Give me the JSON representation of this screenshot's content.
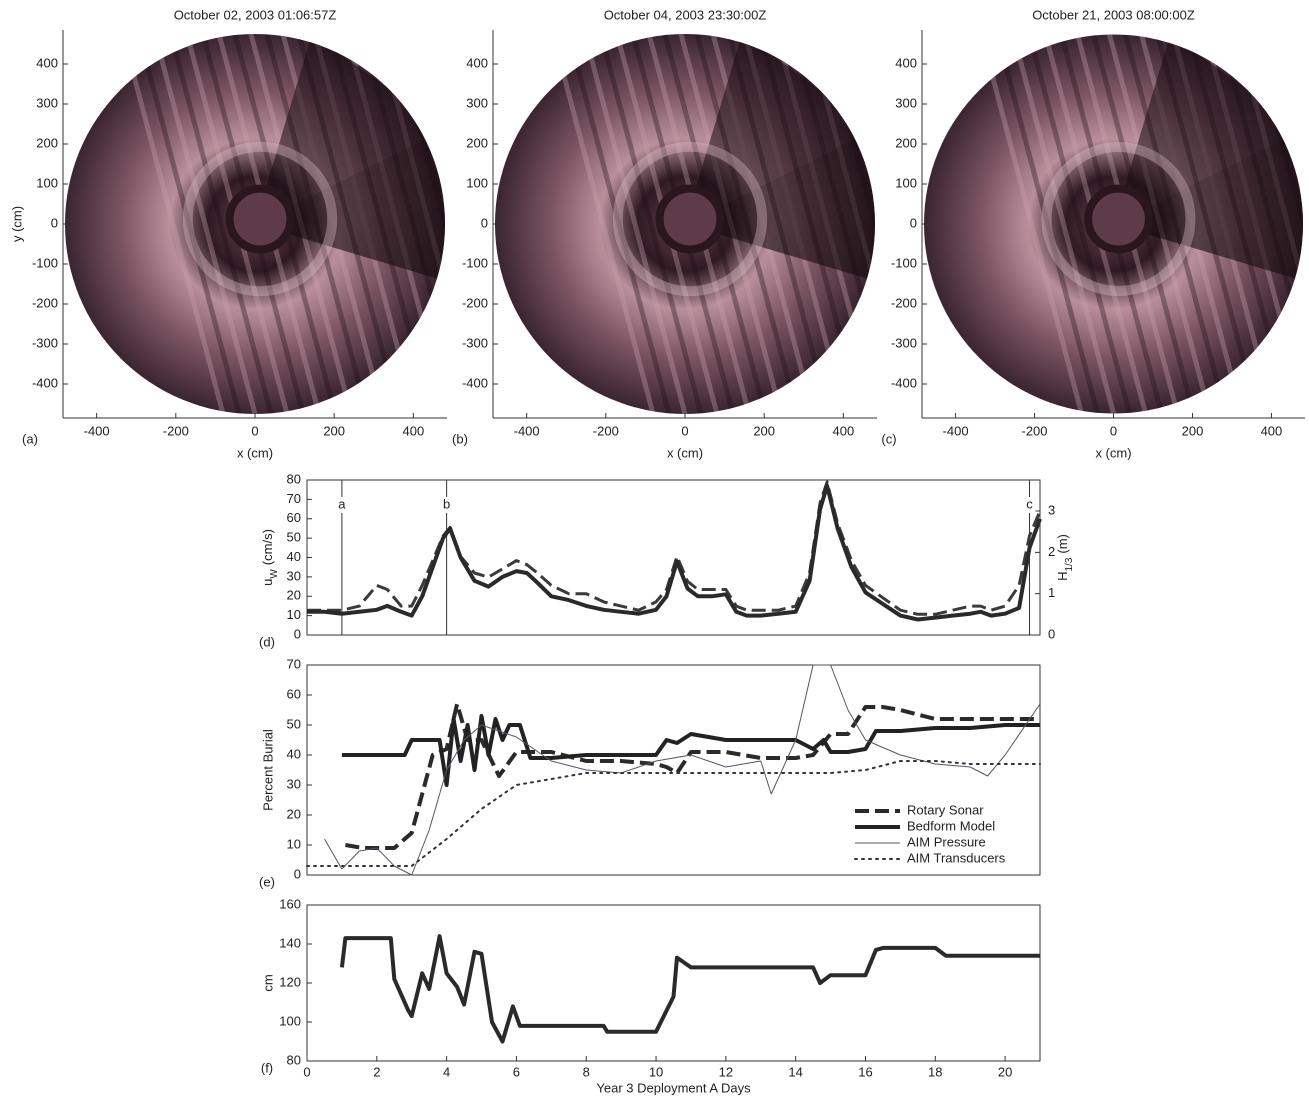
{
  "chart_data": [
    {
      "type": "sonar",
      "title": "October 02, 2003 01:06:57Z",
      "panel_label": "(a)",
      "xlabel": "x (cm)",
      "ylabel": "y (cm)",
      "xlim": [
        -485,
        485
      ],
      "ylim": [
        -485,
        485
      ],
      "xticks": [
        -400,
        -200,
        0,
        200,
        400
      ],
      "yticks": [
        -400,
        -300,
        -200,
        -100,
        0,
        100,
        200,
        300,
        400
      ]
    },
    {
      "type": "sonar",
      "title": "October 04, 2003 23:30:00Z",
      "panel_label": "(b)",
      "xlabel": "x (cm)",
      "xlim": [
        -485,
        485
      ],
      "ylim": [
        -485,
        485
      ],
      "xticks": [
        -400,
        -200,
        0,
        200,
        400
      ],
      "yticks": [
        -400,
        -300,
        -200,
        -100,
        0,
        100,
        200,
        300,
        400
      ]
    },
    {
      "type": "sonar",
      "title": "October 21, 2003 08:00:00Z",
      "panel_label": "(c)",
      "xlabel": "x (cm)",
      "xlim": [
        -485,
        485
      ],
      "ylim": [
        -485,
        485
      ],
      "xticks": [
        -400,
        -200,
        0,
        200,
        400
      ],
      "yticks": [
        -400,
        -300,
        -200,
        -100,
        0,
        100,
        200,
        300,
        400
      ]
    },
    {
      "type": "line",
      "panel_label": "(d)",
      "ylabel": {
        "base": "u",
        "sub": "W",
        "unit": "(cm/s)"
      },
      "y2label": {
        "base": "H",
        "sub": "1/3",
        "unit": "(m)"
      },
      "xlim": [
        0,
        21
      ],
      "ylim": [
        0,
        80
      ],
      "yticks": [
        0,
        10,
        20,
        30,
        40,
        50,
        60,
        70,
        80
      ],
      "y2lim": [
        0,
        3.75
      ],
      "y2ticks": [
        0,
        1,
        2,
        3
      ],
      "markers": [
        {
          "x": 1,
          "label": "a"
        },
        {
          "x": 4,
          "label": "b"
        },
        {
          "x": 20.7,
          "label": "c"
        }
      ],
      "x": [
        0,
        0.5,
        1,
        1.5,
        2,
        2.3,
        2.7,
        3,
        3.3,
        3.6,
        3.9,
        4.1,
        4.4,
        4.8,
        5.2,
        5.6,
        6,
        6.3,
        6.6,
        7,
        7.5,
        8,
        8.5,
        9,
        9.5,
        10,
        10.3,
        10.6,
        10.9,
        11.2,
        11.6,
        12,
        12.3,
        12.6,
        13,
        13.5,
        14,
        14.4,
        14.7,
        14.9,
        15.2,
        15.6,
        16,
        16.5,
        17,
        17.5,
        18,
        18.5,
        19,
        19.3,
        19.6,
        20,
        20.4,
        20.7,
        21
      ],
      "series": [
        {
          "color": "#3a3a3a",
          "dash": "dashed",
          "width": 3,
          "axis": "y2",
          "values": [
            0.6,
            0.6,
            0.6,
            0.7,
            1.2,
            1.1,
            0.7,
            0.7,
            1.2,
            1.8,
            2.4,
            2.6,
            1.9,
            1.5,
            1.4,
            1.6,
            1.8,
            1.7,
            1.5,
            1.2,
            1.0,
            1.0,
            0.8,
            0.7,
            0.6,
            0.8,
            1.1,
            1.9,
            1.3,
            1.1,
            1.1,
            1.1,
            0.7,
            0.6,
            0.6,
            0.6,
            0.7,
            1.5,
            3.2,
            3.7,
            2.7,
            1.8,
            1.2,
            0.9,
            0.6,
            0.5,
            0.5,
            0.6,
            0.7,
            0.7,
            0.6,
            0.7,
            1.2,
            2.4,
            3.0
          ]
        },
        {
          "color": "#2a2a2a",
          "width": 4,
          "values": [
            12,
            12,
            11,
            12,
            13,
            15,
            12,
            10,
            20,
            35,
            50,
            55,
            40,
            28,
            25,
            30,
            33,
            32,
            27,
            20,
            18,
            15,
            13,
            12,
            11,
            13,
            20,
            38,
            24,
            20,
            20,
            21,
            12,
            10,
            10,
            11,
            12,
            28,
            65,
            77,
            55,
            35,
            22,
            16,
            10,
            8,
            9,
            10,
            11,
            12,
            10,
            11,
            14,
            45,
            60
          ]
        }
      ]
    },
    {
      "type": "line",
      "panel_label": "(e)",
      "ylabel": "Percent Burial",
      "legend": "lower right",
      "xlim": [
        0,
        21
      ],
      "ylim": [
        0,
        70
      ],
      "yticks": [
        0,
        10,
        20,
        30,
        40,
        50,
        60,
        70
      ],
      "series": [
        {
          "name": "Rotary Sonar",
          "color": "#2a2a2a",
          "dash": "dashed",
          "width": 4,
          "x": [
            1.1,
            1.6,
            2.0,
            2.5,
            3.0,
            3.3,
            3.6,
            4.0,
            4.3,
            4.6,
            5.0,
            5.5,
            6.0,
            7,
            8,
            9,
            10,
            10.3,
            10.6,
            11,
            12,
            13,
            14,
            14.5,
            15,
            15.5,
            16,
            16.5,
            17,
            18,
            19,
            20,
            21
          ],
          "values": [
            10,
            9,
            9,
            9,
            14,
            27,
            40,
            42,
            57,
            45,
            45,
            33,
            41,
            41,
            38,
            38,
            37,
            36,
            34,
            41,
            41,
            39,
            39,
            40,
            47,
            47,
            56,
            56,
            55,
            52,
            52,
            52,
            52
          ]
        },
        {
          "name": "Bedform Model",
          "color": "#222222",
          "width": 4,
          "x": [
            1,
            2,
            2.8,
            3.0,
            3.5,
            3.8,
            4.0,
            4.2,
            4.4,
            4.6,
            4.8,
            5.0,
            5.2,
            5.4,
            5.6,
            5.8,
            6.1,
            6.4,
            7,
            8,
            9,
            10,
            10.3,
            10.6,
            11,
            11.5,
            12,
            13,
            14,
            14.5,
            14.8,
            15,
            15.5,
            16,
            16.3,
            17,
            18,
            19,
            20,
            21
          ],
          "values": [
            40,
            40,
            40,
            45,
            45,
            45,
            30,
            52,
            38,
            50,
            35,
            53,
            40,
            52,
            45,
            50,
            50,
            39,
            39,
            40,
            40,
            40,
            45,
            44,
            47,
            46,
            45,
            45,
            45,
            42,
            45,
            41,
            41,
            42,
            48,
            48,
            49,
            49,
            50,
            50
          ]
        },
        {
          "name": "AIM Pressure",
          "color": "#555566",
          "width": 1,
          "x": [
            0.5,
            1,
            1.5,
            2,
            2.5,
            3,
            3.5,
            4,
            4.5,
            5,
            5.5,
            6,
            7,
            8,
            9,
            10,
            11,
            12,
            13,
            13.3,
            14,
            14.5,
            15,
            15.5,
            16,
            17,
            18,
            19,
            19.5,
            20,
            21
          ],
          "values": [
            12,
            2,
            8,
            9,
            3,
            0,
            15,
            35,
            45,
            50,
            48,
            46,
            38,
            35,
            34,
            38,
            40,
            36,
            38,
            27,
            45,
            70,
            70,
            55,
            45,
            40,
            37,
            36,
            33,
            40,
            57
          ]
        },
        {
          "name": "AIM Transducers",
          "color": "#333333",
          "dash": "dotted",
          "width": 2,
          "x": [
            0,
            1,
            2,
            3,
            4,
            5,
            6,
            7,
            8,
            10,
            12,
            14,
            15,
            16,
            17,
            18,
            19,
            20,
            21
          ],
          "values": [
            3,
            3,
            3,
            3,
            12,
            22,
            30,
            32,
            34,
            34,
            34,
            34,
            34,
            35,
            38,
            38,
            37,
            37,
            37
          ]
        }
      ]
    },
    {
      "type": "line",
      "panel_label": "(f)",
      "ylabel": "cm",
      "xlabel": "Year 3 Deployment A Days",
      "xlim": [
        0,
        21
      ],
      "xticks": [
        0,
        2,
        4,
        6,
        8,
        10,
        12,
        14,
        16,
        18,
        20
      ],
      "ylim": [
        80,
        160
      ],
      "yticks": [
        80,
        100,
        120,
        140,
        160
      ],
      "x": [
        1,
        1.1,
        2.4,
        2.5,
        2.9,
        3.0,
        3.3,
        3.5,
        3.8,
        4.0,
        4.3,
        4.5,
        4.8,
        5.0,
        5.3,
        5.6,
        5.9,
        6.1,
        6.3,
        8.5,
        8.6,
        10,
        10.5,
        10.6,
        11,
        14.5,
        14.7,
        15,
        16,
        16.3,
        16.5,
        18,
        18.3,
        21
      ],
      "series": [
        {
          "color": "#2a2a2a",
          "width": 4,
          "values": [
            128,
            143,
            143,
            122,
            106,
            103,
            125,
            117,
            144,
            125,
            118,
            109,
            136,
            135,
            100,
            90,
            108,
            98,
            98,
            98,
            95,
            95,
            113,
            133,
            128,
            128,
            120,
            124,
            124,
            137,
            138,
            138,
            134,
            134
          ]
        }
      ]
    }
  ]
}
